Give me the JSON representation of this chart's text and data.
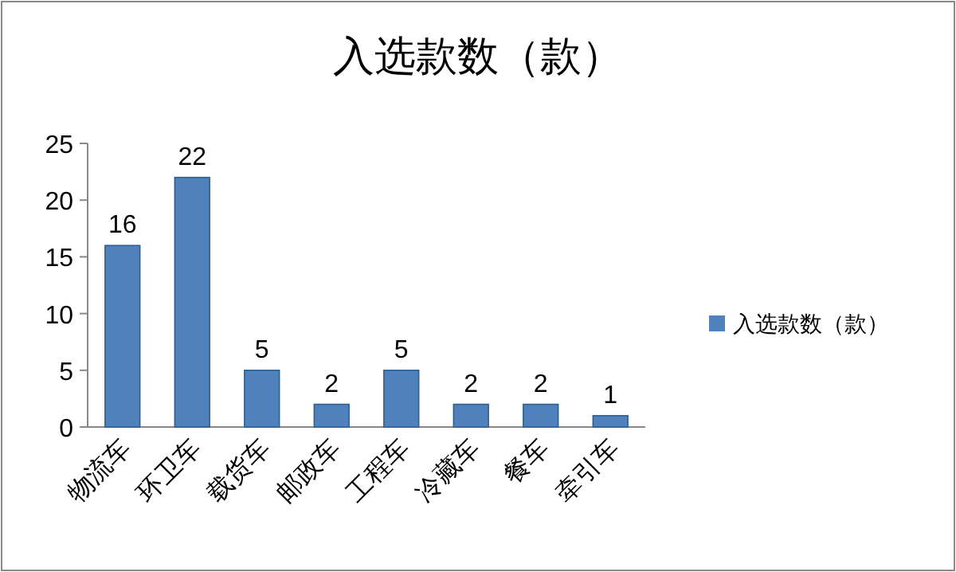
{
  "chart_data": {
    "type": "bar",
    "title": "入选款数（款）",
    "categories": [
      "物流车",
      "环卫车",
      "载货车",
      "邮政车",
      "工程车",
      "冷藏车",
      "餐车",
      "牵引车"
    ],
    "series": [
      {
        "name": "入选款数（款）",
        "color": "#4f81bd",
        "values": [
          16,
          22,
          5,
          2,
          5,
          2,
          2,
          1
        ]
      }
    ],
    "ylim": [
      0,
      25
    ],
    "yticks": [
      0,
      5,
      10,
      15,
      20,
      25
    ],
    "data_labels": true,
    "legend": "right"
  }
}
